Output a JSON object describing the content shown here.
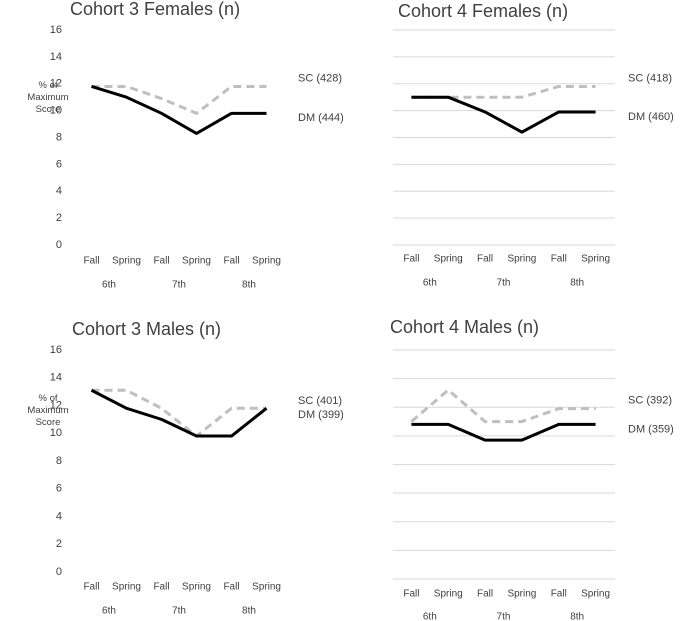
{
  "chart_data": [
    {
      "type": "line",
      "title": "Cohort 3 Females (n)",
      "y_label": "% of Maximum Score",
      "categories": [
        "Fall",
        "Spring",
        "Fall",
        "Spring",
        "Fall",
        "Spring"
      ],
      "groups": [
        "6th",
        "7th",
        "8th"
      ],
      "series": [
        {
          "name": "SC (428)",
          "color": "#bfbfbf",
          "dashed": true,
          "values": [
            11.8,
            11.8,
            10.9,
            9.8,
            11.8,
            11.8
          ]
        },
        {
          "name": "DM (444)",
          "color": "#000000",
          "dashed": false,
          "values": [
            11.8,
            11.0,
            9.8,
            8.3,
            9.8,
            9.8
          ]
        }
      ],
      "ylim": [
        0,
        16
      ],
      "yticks": [
        0,
        2,
        4,
        6,
        8,
        10,
        12,
        14,
        16
      ],
      "tick_labels": true,
      "grid": false
    },
    {
      "type": "line",
      "title": "Cohort 4 Females (n)",
      "categories": [
        "Fall",
        "Spring",
        "Fall",
        "Spring",
        "Fall",
        "Spring"
      ],
      "groups": [
        "6th",
        "7th",
        "8th"
      ],
      "series": [
        {
          "name": "SC (418)",
          "color": "#bfbfbf",
          "dashed": true,
          "values": [
            11.0,
            11.0,
            11.0,
            11.0,
            11.8,
            11.8
          ]
        },
        {
          "name": "DM (460)",
          "color": "#000000",
          "dashed": false,
          "values": [
            11.0,
            11.0,
            9.9,
            8.4,
            9.9,
            9.9
          ]
        }
      ],
      "ylim": [
        0,
        16
      ],
      "yticks": [
        0,
        2,
        4,
        6,
        8,
        10,
        12,
        14,
        16
      ],
      "tick_labels": false,
      "grid": true
    },
    {
      "type": "line",
      "title": "Cohort 3 Males (n)",
      "y_label": "% of Maximum Score",
      "categories": [
        "Fall",
        "Spring",
        "Fall",
        "Spring",
        "Fall",
        "Spring"
      ],
      "groups": [
        "6th",
        "7th",
        "8th"
      ],
      "series": [
        {
          "name": "SC (401)",
          "color": "#bfbfbf",
          "dashed": true,
          "values": [
            13.1,
            13.1,
            11.8,
            9.8,
            11.8,
            11.8
          ]
        },
        {
          "name": "DM (399)",
          "color": "#000000",
          "dashed": false,
          "values": [
            13.1,
            11.8,
            11.0,
            9.8,
            9.8,
            11.8
          ]
        }
      ],
      "ylim": [
        0,
        16
      ],
      "yticks": [
        0,
        2,
        4,
        6,
        8,
        10,
        12,
        14,
        16
      ],
      "tick_labels": true,
      "grid": false
    },
    {
      "type": "line",
      "title": "Cohort 4 Males (n)",
      "categories": [
        "Fall",
        "Spring",
        "Fall",
        "Spring",
        "Fall",
        "Spring"
      ],
      "groups": [
        "6th",
        "7th",
        "8th"
      ],
      "series": [
        {
          "name": "SC (392)",
          "color": "#bfbfbf",
          "dashed": true,
          "values": [
            11.0,
            13.2,
            11.0,
            11.0,
            11.9,
            11.9
          ]
        },
        {
          "name": "DM (359)",
          "color": "#000000",
          "dashed": false,
          "values": [
            10.8,
            10.8,
            9.7,
            9.7,
            10.8,
            10.8
          ]
        }
      ],
      "ylim": [
        0,
        16
      ],
      "yticks": [
        0,
        2,
        4,
        6,
        8,
        10,
        12,
        14,
        16
      ],
      "tick_labels": false,
      "grid": true
    }
  ]
}
